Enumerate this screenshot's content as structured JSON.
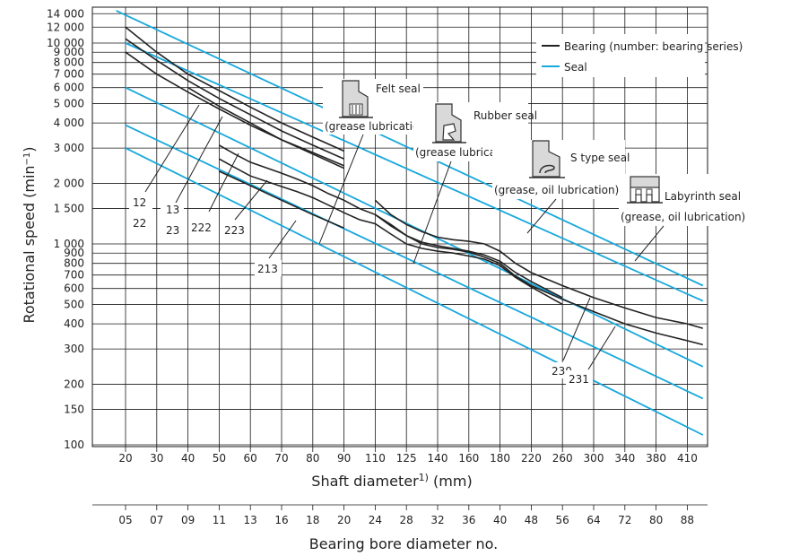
{
  "chart_data": {
    "type": "line",
    "y_title": "Rotational speed (min",
    "y_title_sup": "−1",
    "y_title_end": ")",
    "x_title": "Shaft diameter",
    "x_title_sup": "1)",
    "x_title_end": " (mm)",
    "x2_title": "Bearing bore diameter no.",
    "y_scale": "log",
    "y_range": [
      100,
      15000
    ],
    "grid": true,
    "y_ticks": [
      {
        "v": 100,
        "t": "100"
      },
      {
        "v": 150,
        "t": "150"
      },
      {
        "v": 200,
        "t": "200"
      },
      {
        "v": 300,
        "t": "300"
      },
      {
        "v": 400,
        "t": "400"
      },
      {
        "v": 500,
        "t": "500"
      },
      {
        "v": 600,
        "t": "600"
      },
      {
        "v": 700,
        "t": "700"
      },
      {
        "v": 800,
        "t": "800"
      },
      {
        "v": 900,
        "t": "900"
      },
      {
        "v": 1000,
        "t": "1 000"
      },
      {
        "v": 1500,
        "t": "1 500"
      },
      {
        "v": 2000,
        "t": "2 000"
      },
      {
        "v": 3000,
        "t": "3 000"
      },
      {
        "v": 4000,
        "t": "4 000"
      },
      {
        "v": 5000,
        "t": "5 000"
      },
      {
        "v": 6000,
        "t": "6 000"
      },
      {
        "v": 7000,
        "t": "7 000"
      },
      {
        "v": 8000,
        "t": "8 000"
      },
      {
        "v": 9000,
        "t": "9 000"
      },
      {
        "v": 10000,
        "t": "10 000"
      },
      {
        "v": 12000,
        "t": "12 000"
      },
      {
        "v": 14000,
        "t": "14 000"
      }
    ],
    "x_categories": [
      "20",
      "30",
      "40",
      "50",
      "60",
      "70",
      "80",
      "90",
      "110",
      "125",
      "140",
      "160",
      "180",
      "220",
      "260",
      "300",
      "340",
      "380",
      "410"
    ],
    "x2_categories": [
      "05",
      "07",
      "09",
      "11",
      "13",
      "16",
      "18",
      "20",
      "24",
      "28",
      "32",
      "36",
      "40",
      "48",
      "56",
      "64",
      "72",
      "80",
      "88"
    ],
    "legend_position": "top-right",
    "legend": [
      {
        "label": "Bearing (number: bearing series)",
        "color": "#222222"
      },
      {
        "label": "Seal",
        "color": "#17a8dc"
      }
    ],
    "bearing_series": [
      {
        "name": "12",
        "points": [
          [
            0,
            12000
          ],
          [
            1,
            9000
          ],
          [
            2,
            7000
          ],
          [
            3,
            5800
          ],
          [
            4,
            4800
          ],
          [
            5,
            4000
          ],
          [
            6,
            3400
          ],
          [
            7,
            2900
          ]
        ]
      },
      {
        "name": "22",
        "points": [
          [
            0,
            9000
          ],
          [
            1,
            7000
          ],
          [
            2,
            5700
          ],
          [
            3,
            4700
          ],
          [
            4,
            3900
          ],
          [
            5,
            3300
          ],
          [
            6,
            2850
          ],
          [
            7,
            2450
          ]
        ]
      },
      {
        "name": "13",
        "points": [
          [
            0,
            10500
          ],
          [
            1,
            8200
          ],
          [
            2,
            6500
          ],
          [
            3,
            5300
          ],
          [
            4,
            4400
          ],
          [
            5,
            3650
          ],
          [
            6,
            3100
          ],
          [
            7,
            2650
          ]
        ]
      },
      {
        "name": "23",
        "points": [
          [
            2.0,
            6000
          ],
          [
            3.0,
            4850
          ],
          [
            4.0,
            4000
          ],
          [
            5.0,
            3300
          ],
          [
            6.0,
            2800
          ],
          [
            7.0,
            2380
          ]
        ]
      },
      {
        "name": "222",
        "points": [
          [
            3.0,
            3100
          ],
          [
            3.5,
            2800
          ],
          [
            4.0,
            2550
          ],
          [
            5.0,
            2250
          ],
          [
            5.5,
            2100
          ],
          [
            6.0,
            1950
          ],
          [
            6.5,
            1780
          ],
          [
            7.0,
            1650
          ],
          [
            7.5,
            1500
          ],
          [
            8.0,
            1400
          ],
          [
            8.5,
            1250
          ],
          [
            9.0,
            1100
          ],
          [
            9.5,
            1020
          ],
          [
            10.0,
            980
          ],
          [
            10.5,
            950
          ],
          [
            11.0,
            920
          ],
          [
            11.5,
            880
          ],
          [
            12.0,
            820
          ],
          [
            12.5,
            720
          ],
          [
            13.0,
            650
          ],
          [
            14.0,
            540
          ]
        ]
      },
      {
        "name": "223",
        "points": [
          [
            3.0,
            2650
          ],
          [
            3.5,
            2400
          ],
          [
            4.0,
            2180
          ],
          [
            5.0,
            1930
          ],
          [
            5.5,
            1820
          ],
          [
            6.0,
            1700
          ],
          [
            6.5,
            1560
          ],
          [
            7.0,
            1430
          ],
          [
            7.5,
            1320
          ],
          [
            8.0,
            1260
          ],
          [
            8.5,
            1120
          ],
          [
            9.0,
            1000
          ],
          [
            9.5,
            950
          ],
          [
            10.0,
            920
          ],
          [
            10.5,
            900
          ],
          [
            11.0,
            870
          ],
          [
            11.5,
            840
          ],
          [
            12.0,
            780
          ],
          [
            12.5,
            680
          ],
          [
            13.0,
            610
          ],
          [
            14.0,
            500
          ]
        ]
      },
      {
        "name": "213",
        "points": [
          [
            3.0,
            2300
          ],
          [
            4.0,
            1950
          ],
          [
            5.0,
            1650
          ],
          [
            6.0,
            1400
          ],
          [
            7.0,
            1200
          ]
        ]
      },
      {
        "name": "230",
        "points": [
          [
            8.0,
            1650
          ],
          [
            8.5,
            1400
          ],
          [
            9.0,
            1250
          ],
          [
            9.5,
            1150
          ],
          [
            10.0,
            1080
          ],
          [
            10.5,
            1050
          ],
          [
            11.0,
            1030
          ],
          [
            11.5,
            1000
          ],
          [
            12.0,
            920
          ],
          [
            12.5,
            800
          ],
          [
            13.0,
            720
          ],
          [
            14.0,
            620
          ],
          [
            15.0,
            540
          ],
          [
            16.0,
            480
          ],
          [
            17.0,
            430
          ],
          [
            18.0,
            400
          ],
          [
            18.5,
            380
          ]
        ]
      },
      {
        "name": "231",
        "points": [
          [
            8.0,
            1400
          ],
          [
            8.5,
            1230
          ],
          [
            9.0,
            1100
          ],
          [
            9.5,
            1000
          ],
          [
            10.0,
            960
          ],
          [
            10.5,
            940
          ],
          [
            11.0,
            910
          ],
          [
            11.5,
            860
          ],
          [
            12.0,
            800
          ],
          [
            12.5,
            690
          ],
          [
            13.0,
            620
          ],
          [
            14.0,
            530
          ],
          [
            15.0,
            460
          ],
          [
            16.0,
            400
          ],
          [
            17.0,
            360
          ],
          [
            18.0,
            330
          ],
          [
            18.5,
            315
          ]
        ]
      }
    ],
    "seal_series": [
      {
        "points": [
          [
            -0.3,
            14500
          ],
          [
            18.5,
            620
          ]
        ]
      },
      {
        "points": [
          [
            0,
            10000
          ],
          [
            18.5,
            520
          ]
        ]
      },
      {
        "points": [
          [
            0,
            6000
          ],
          [
            18.5,
            245
          ]
        ]
      },
      {
        "points": [
          [
            0,
            3900
          ],
          [
            18.5,
            170
          ]
        ]
      },
      {
        "points": [
          [
            0,
            3000
          ],
          [
            18.5,
            112
          ]
        ]
      }
    ],
    "annotations": [
      {
        "name": "felt-seal",
        "title": "Felt seal",
        "subtitle": "(grease lubrication)",
        "icon": "felt-seal-icon"
      },
      {
        "name": "rubber-seal",
        "title": "Rubber seal",
        "subtitle": "(grease lubrication)",
        "icon": "rubber-seal-icon"
      },
      {
        "name": "s-type-seal",
        "title": "S type seal",
        "subtitle": "(grease, oil lubrication)",
        "icon": "s-type-seal-icon"
      },
      {
        "name": "labyrinth-seal",
        "title": "Labyrinth seal",
        "subtitle": "(grease, oil lubrication)",
        "icon": "labyrinth-seal-icon"
      }
    ]
  }
}
